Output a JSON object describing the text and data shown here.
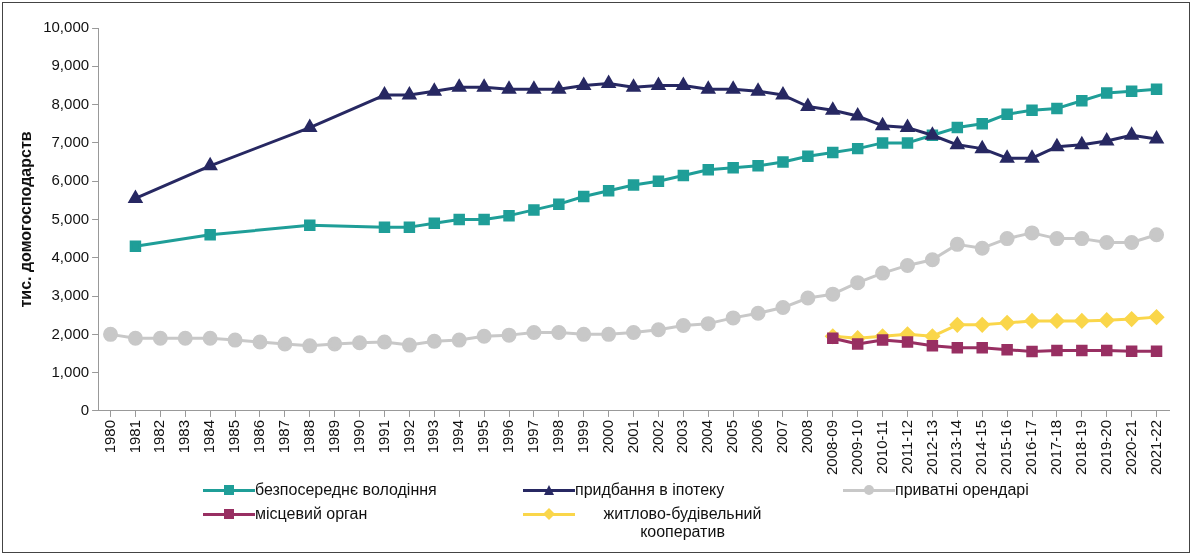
{
  "chart_data": {
    "type": "line",
    "ylabel": "тис. домогосподарств",
    "categories": [
      "1980",
      "1981",
      "1982",
      "1983",
      "1984",
      "1985",
      "1986",
      "1987",
      "1988",
      "1989",
      "1990",
      "1991",
      "1992",
      "1993",
      "1994",
      "1995",
      "1996",
      "1997",
      "1998",
      "1999",
      "2000",
      "2001",
      "2002",
      "2003",
      "2004",
      "2005",
      "2006",
      "2007",
      "2008",
      "2008-09",
      "2009-10",
      "2010-11",
      "2011-12",
      "2012-13",
      "2013-14",
      "2014-15",
      "2015-16",
      "2016-17",
      "2017-18",
      "2018-19",
      "2019-20",
      "2020-21",
      "2021-22"
    ],
    "ylim": [
      0,
      10000
    ],
    "yticks": [
      0,
      {
        "value": 1000,
        "label": "1,000"
      },
      {
        "value": 2000,
        "label": "2,000"
      },
      {
        "value": 3000,
        "label": "3,000"
      },
      {
        "value": 4000,
        "label": "4,000"
      },
      {
        "value": 5000,
        "label": "5,000"
      },
      {
        "value": 6000,
        "label": "6,000"
      },
      {
        "value": 7000,
        "label": "7,000"
      },
      {
        "value": 8000,
        "label": "8,000"
      },
      {
        "value": 9000,
        "label": "9,000"
      },
      {
        "value": 10000,
        "label": "10,000"
      }
    ],
    "grid": false,
    "legend": "bottom",
    "line_style": "solid",
    "series": [
      {
        "name": "безпосереднє володіння",
        "color": "#1f9e98",
        "marker": "square",
        "values": [
          null,
          4300,
          null,
          null,
          4600,
          null,
          null,
          null,
          4850,
          null,
          null,
          4800,
          4800,
          4900,
          5000,
          5000,
          5100,
          5250,
          5400,
          5600,
          5750,
          5900,
          6000,
          6150,
          6300,
          6350,
          6400,
          6500,
          6650,
          6750,
          6850,
          7000,
          7000,
          7200,
          7400,
          7500,
          7750,
          7850,
          7900,
          8100,
          8300,
          8350,
          8400
        ]
      },
      {
        "name": "придбання в іпотеку",
        "color": "#272862",
        "marker": "triangle",
        "values": [
          null,
          5550,
          null,
          null,
          6400,
          null,
          null,
          null,
          7400,
          null,
          null,
          8250,
          8250,
          8350,
          8450,
          8450,
          8400,
          8400,
          8400,
          8500,
          8550,
          8450,
          8500,
          8500,
          8400,
          8400,
          8350,
          8250,
          7950,
          7850,
          7700,
          7450,
          7400,
          7200,
          6950,
          6850,
          6600,
          6600,
          6900,
          6950,
          7050,
          7200,
          7100
        ]
      },
      {
        "name": "приватні орендарі",
        "color": "#c8c8c8",
        "marker": "circle",
        "values": [
          2000,
          1900,
          1900,
          1900,
          1900,
          1850,
          1800,
          1750,
          1700,
          1750,
          1780,
          1800,
          1720,
          1820,
          1850,
          1950,
          1980,
          2050,
          2050,
          2000,
          2000,
          2050,
          2120,
          2230,
          2280,
          2430,
          2550,
          2700,
          2950,
          3050,
          3350,
          3600,
          3800,
          3950,
          4350,
          4250,
          4500,
          4650,
          4500,
          4500,
          4400,
          4400,
          4600
        ]
      },
      {
        "name": "місцевий орган",
        "color": "#982f62",
        "marker": "square",
        "values": [
          null,
          null,
          null,
          null,
          null,
          null,
          null,
          null,
          null,
          null,
          null,
          null,
          null,
          null,
          null,
          null,
          null,
          null,
          null,
          null,
          null,
          null,
          null,
          null,
          null,
          null,
          null,
          null,
          null,
          1900,
          1750,
          1850,
          1800,
          1700,
          1650,
          1650,
          1600,
          1550,
          1580,
          1580,
          1580,
          1560,
          1560
        ]
      },
      {
        "name": "житлово-будівельний кооператив",
        "color": "#fad64a",
        "marker": "diamond",
        "values": [
          null,
          null,
          null,
          null,
          null,
          null,
          null,
          null,
          null,
          null,
          null,
          null,
          null,
          null,
          null,
          null,
          null,
          null,
          null,
          null,
          null,
          null,
          null,
          null,
          null,
          null,
          null,
          null,
          null,
          1950,
          1900,
          1950,
          2000,
          1950,
          2250,
          2250,
          2300,
          2350,
          2350,
          2350,
          2370,
          2400,
          2450
        ]
      }
    ]
  }
}
